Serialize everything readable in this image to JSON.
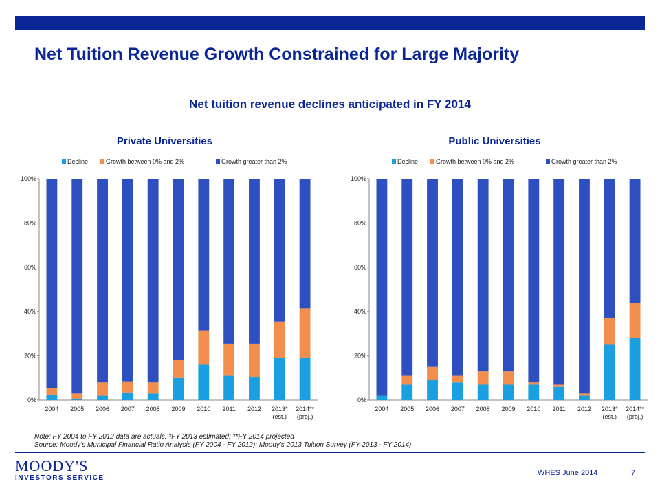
{
  "header": {
    "title": "Net Tuition Revenue Growth Constrained for Large Majority",
    "subtitle": "Net tuition revenue declines anticipated in FY 2014"
  },
  "colors": {
    "brand": "#0a2596",
    "decline": "#1aa0e0",
    "growth_0_2": "#f28e4e",
    "growth_gt_2": "#2e4fbf"
  },
  "chart_data": [
    {
      "type": "bar",
      "stacked": true,
      "title": "Private Universities",
      "categories": [
        "2004",
        "2005",
        "2006",
        "2007",
        "2008",
        "2009",
        "2010",
        "2011",
        "2012",
        "2013*\n(est.)",
        "2014**\n(proj.)"
      ],
      "series": [
        {
          "name": "Decline",
          "values": [
            2.5,
            0.5,
            2,
            3.5,
            3,
            10,
            16,
            11,
            10.5,
            19,
            19
          ]
        },
        {
          "name": "Growth between 0% and 2%",
          "values": [
            3,
            2.5,
            6,
            5,
            5,
            8,
            15.5,
            14.5,
            15,
            16.5,
            22.5
          ]
        },
        {
          "name": "Growth greater than 2%",
          "values": [
            94.5,
            97,
            92,
            91.5,
            92,
            82,
            68.5,
            74.5,
            74.5,
            64.5,
            58.5
          ]
        }
      ],
      "ylim": [
        0,
        100
      ],
      "yticks": [
        "0%",
        "20%",
        "40%",
        "60%",
        "80%",
        "100%"
      ],
      "legend": "top"
    },
    {
      "type": "bar",
      "stacked": true,
      "title": "Public Universities",
      "categories": [
        "2004",
        "2005",
        "2006",
        "2007",
        "2008",
        "2009",
        "2010",
        "2011",
        "2012",
        "2013*\n(est.)",
        "2014**\n(proj.)"
      ],
      "series": [
        {
          "name": "Decline",
          "values": [
            2,
            7,
            9,
            8,
            7,
            7,
            7,
            6,
            2,
            25,
            28
          ]
        },
        {
          "name": "Growth between 0% and 2%",
          "values": [
            0,
            4,
            6,
            3,
            6,
            6,
            1,
            1,
            1,
            12,
            16
          ]
        },
        {
          "name": "Growth greater than 2%",
          "values": [
            98,
            89,
            85,
            89,
            87,
            87,
            92,
            93,
            97,
            63,
            56
          ]
        }
      ],
      "ylim": [
        0,
        100
      ],
      "yticks": [
        "0%",
        "20%",
        "40%",
        "60%",
        "80%",
        "100%"
      ],
      "legend": "top"
    }
  ],
  "notes": {
    "line1": "Note: FY 2004 to FY 2012 data are actuals. *FY 2013 estimated; **FY 2014 projected",
    "line2": "Source: Moody's Municipal Financial Ratio Analysis (FY 2004 - FY 2012); Moody's 2013 Tuition Survey (FY 2013 - FY 2014)"
  },
  "footer": {
    "logo_main": "MOODY'S",
    "logo_sub": "INVESTORS SERVICE",
    "label": "WHES June 2014",
    "page": "7"
  }
}
